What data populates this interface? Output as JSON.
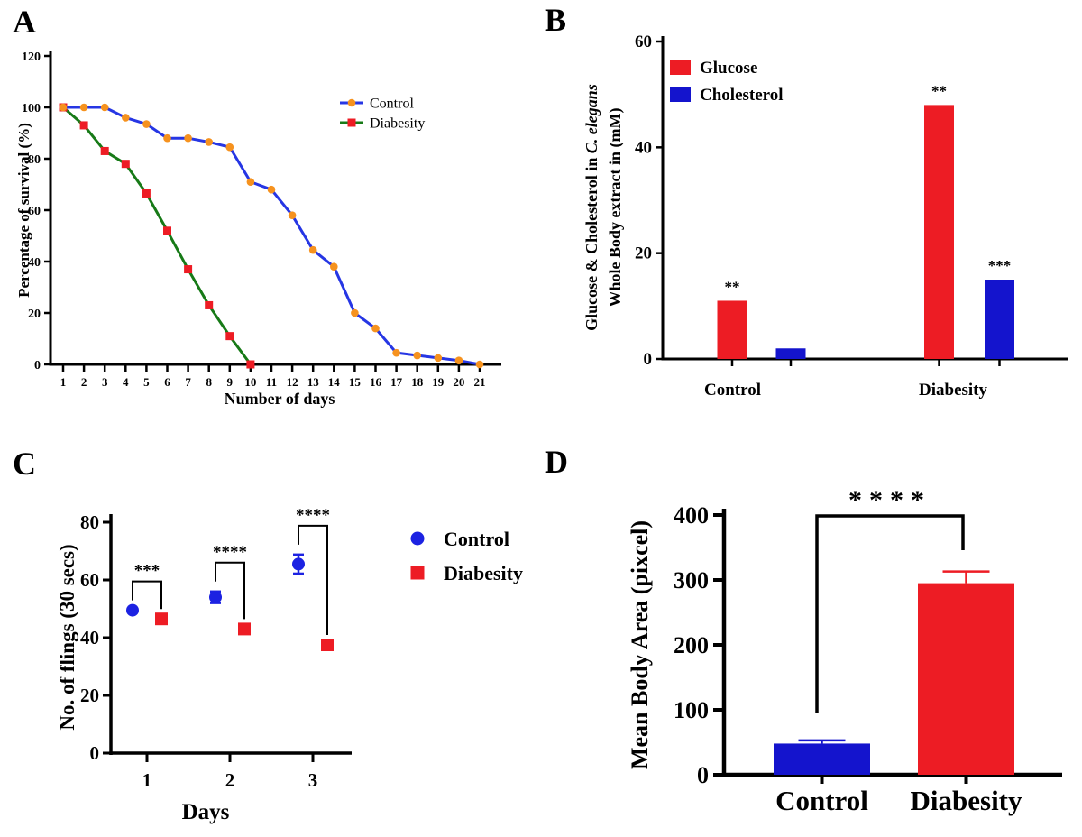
{
  "figure": {
    "background": "#ffffff",
    "panel_letters": {
      "a": "A",
      "b": "B",
      "c": "C",
      "d": "D"
    }
  },
  "colors": {
    "red": "#ed1c24",
    "blue_bar": "#1414cd",
    "blue_point": "#1c22e2",
    "blue_line": "#2636e4",
    "green_line": "#177a17",
    "orange_marker": "#f6921e",
    "axis": "#000000"
  },
  "chart_data": [
    {
      "panel": "A",
      "type": "line",
      "title": "",
      "xlabel": "Number of days",
      "ylabel": "Percentage of survival (%)",
      "ylim": [
        0,
        120
      ],
      "yticks": [
        0,
        20,
        40,
        60,
        80,
        100,
        120
      ],
      "xticks": [
        1,
        2,
        3,
        4,
        5,
        6,
        7,
        8,
        9,
        10,
        11,
        12,
        13,
        14,
        15,
        16,
        17,
        18,
        19,
        20,
        21
      ],
      "grid": false,
      "legend_position": "upper-right-inside",
      "series": [
        {
          "name": "Diabesity",
          "marker": "square",
          "marker_color": "#ed1c24",
          "line_color": "#177a17",
          "x": [
            1,
            2,
            3,
            4,
            5,
            6,
            7,
            8,
            9,
            10
          ],
          "values": [
            100,
            93,
            83,
            78,
            66.5,
            52,
            37,
            23,
            11,
            0
          ]
        },
        {
          "name": "Control",
          "marker": "circle",
          "marker_color": "#f6921e",
          "line_color": "#2636e4",
          "x": [
            1,
            2,
            3,
            4,
            5,
            6,
            7,
            8,
            9,
            10,
            11,
            12,
            13,
            14,
            15,
            16,
            17,
            18,
            19,
            20,
            21
          ],
          "values": [
            100,
            100,
            100,
            96,
            93.5,
            88,
            88,
            86.5,
            84.5,
            71,
            68,
            58,
            44.5,
            38,
            20,
            14,
            4.5,
            3.5,
            2.5,
            1.5,
            0
          ]
        }
      ],
      "legend": [
        {
          "label": "Control",
          "marker": "circle",
          "marker_color": "#f6921e",
          "line_color": "#2636e4"
        },
        {
          "label": "Diabesity",
          "marker": "square",
          "marker_color": "#ed1c24",
          "line_color": "#177a17"
        }
      ]
    },
    {
      "panel": "B",
      "type": "bar",
      "ylabel_line1_segments": [
        {
          "text": "Glucose & Cholesterol in ",
          "italic": false
        },
        {
          "text": "C. elegans",
          "italic": true
        }
      ],
      "ylabel_line2": "Whole Body extract in (mM)",
      "ylim": [
        0,
        60
      ],
      "yticks": [
        0,
        20,
        40,
        60
      ],
      "categories": [
        "Control",
        "Diabesity"
      ],
      "series": [
        {
          "name": "Glucose",
          "color": "#ed1c24",
          "values": [
            11,
            48
          ],
          "significance": [
            "**",
            "**"
          ]
        },
        {
          "name": "Cholesterol",
          "color": "#1414cd",
          "values": [
            2,
            15
          ],
          "significance": [
            "",
            "***"
          ]
        }
      ],
      "legend": [
        {
          "label": "Glucose",
          "color": "#ed1c24"
        },
        {
          "label": "Cholesterol",
          "color": "#1414cd"
        }
      ],
      "legend_position": "upper-left-inside"
    },
    {
      "panel": "C",
      "type": "scatter",
      "xlabel": "Days",
      "ylabel": "No. of flings (30 secs)",
      "ylim": [
        0,
        80
      ],
      "yticks": [
        0,
        20,
        40,
        60,
        80
      ],
      "x": [
        1,
        2,
        3
      ],
      "series": [
        {
          "name": "Control",
          "marker": "circle",
          "color": "#1c22e2",
          "values": [
            49.5,
            54,
            65.5
          ],
          "errors": [
            0,
            2,
            3.3
          ]
        },
        {
          "name": "Diabesity",
          "marker": "square",
          "color": "#ed1c24",
          "values": [
            46.5,
            43,
            37.5
          ],
          "errors": [
            0,
            0,
            0
          ]
        }
      ],
      "significance": [
        "***",
        "****",
        "****"
      ],
      "legend": [
        {
          "label": "Control",
          "marker": "circle",
          "color": "#1c22e2"
        },
        {
          "label": "Diabesity",
          "marker": "square",
          "color": "#ed1c24"
        }
      ],
      "legend_position": "right-outside"
    },
    {
      "panel": "D",
      "type": "bar",
      "ylabel": "Mean Body Area (pixcel)",
      "ylim": [
        0,
        400
      ],
      "yticks": [
        0,
        100,
        200,
        300,
        400
      ],
      "categories": [
        "Control",
        "Diabesity"
      ],
      "values": [
        48,
        295
      ],
      "errors": [
        5,
        18
      ],
      "bar_colors": [
        "#1414cd",
        "#ed1c24"
      ],
      "significance": "****"
    }
  ]
}
